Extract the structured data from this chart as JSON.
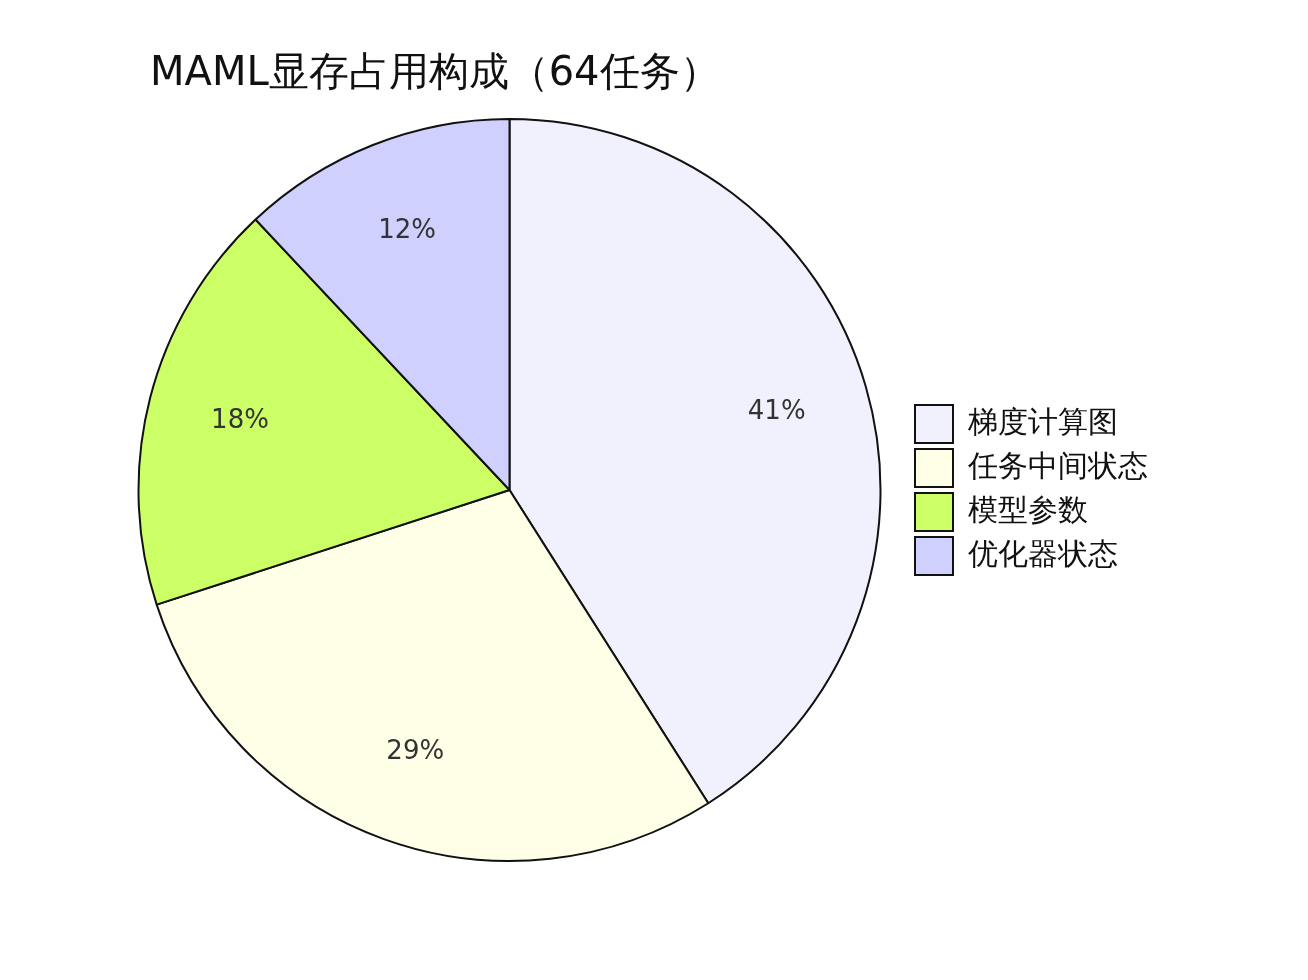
{
  "chart_data": {
    "type": "pie",
    "title": "MAML显存占用构成（64任务）",
    "categories": [
      "梯度计算图",
      "任务中间状态",
      "模型参数",
      "优化器状态"
    ],
    "values": [
      41,
      29,
      18,
      12
    ],
    "value_labels": [
      "41%",
      "29%",
      "18%",
      "12%"
    ],
    "colors": [
      "#f1f1fe",
      "#ffffe8",
      "#ccff66",
      "#d0d0ff"
    ],
    "legend": "right"
  }
}
